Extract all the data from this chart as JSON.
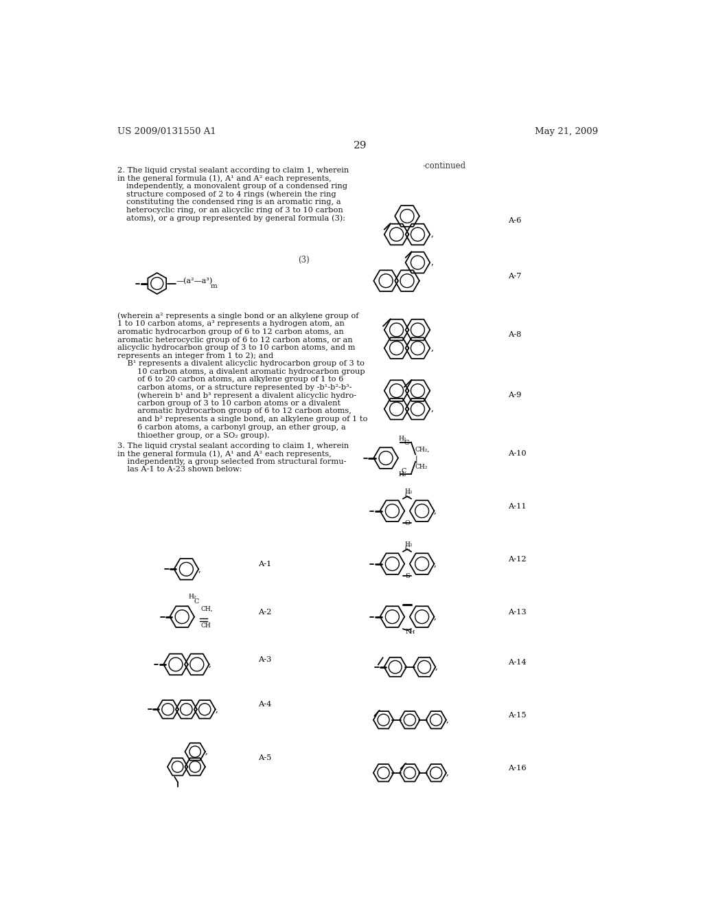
{
  "background_color": "#ffffff",
  "page_number": "29",
  "header_left": "US 2009/0131550 A1",
  "header_right": "May 21, 2009",
  "continued_label": "-continued"
}
